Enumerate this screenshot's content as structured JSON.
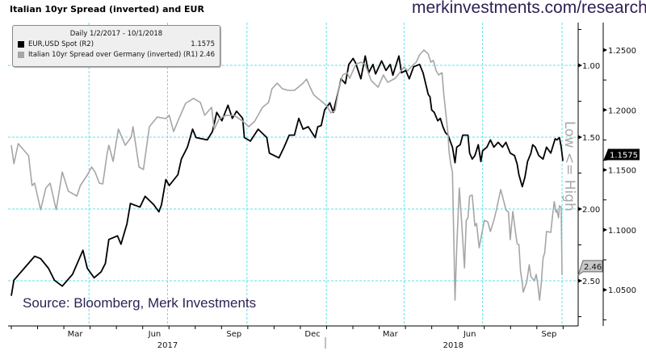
{
  "header": {
    "title": "Italian 10yr Spread (inverted) and EUR",
    "website": "merkinvestments.com/research"
  },
  "legend": {
    "header": "Daily 1/2/2017 - 10/1/2018",
    "items": [
      {
        "label": "EUR,USD Spot (R2)",
        "value": "1.1575",
        "color": "#000000"
      },
      {
        "label": "Italian 10yr Spread over Germany (inverted) (R1)",
        "value": "2.46",
        "color": "#a6a6a6"
      }
    ]
  },
  "source": "Source: Bloomberg, Merk Investments",
  "axis_note": "Low <= High",
  "chart_data": {
    "type": "line",
    "title": "Italian 10yr Spread (inverted) and EUR",
    "x_unit": "days since 2017-01-01",
    "x_range": [
      0,
      640
    ],
    "x_ticks": [
      {
        "label": "Mar",
        "day": 74
      },
      {
        "label": "Jun",
        "day": 166
      },
      {
        "label": "Sep",
        "day": 258
      },
      {
        "label": "Dec",
        "day": 349
      },
      {
        "label": "Mar",
        "day": 439
      },
      {
        "label": "Jun",
        "day": 531
      },
      {
        "label": "Sep",
        "day": 623
      }
    ],
    "x_gridlines_days": [
      90,
      181,
      273,
      365,
      455,
      546,
      638
    ],
    "years": [
      {
        "label": "2017",
        "day": 181
      },
      {
        "label": "2018",
        "day": 512
      }
    ],
    "grid": true,
    "legend_position": "top-left",
    "axes": {
      "R1": {
        "label": "Italian 10yr Spread (inverted)",
        "inverted": true,
        "ticks": [
          "1.00",
          "1.50",
          "2.00",
          "2.50"
        ],
        "range": [
          0.9,
          2.85
        ]
      },
      "R2": {
        "label": "EUR,USD Spot",
        "ticks": [
          "1.2500",
          "1.2000",
          "1.1500",
          "1.1000",
          "1.0500"
        ],
        "range": [
          1.03,
          1.275
        ]
      }
    },
    "last_values": {
      "eurusd": "1.1575",
      "spread": "2.46"
    },
    "series": [
      {
        "name": "EUR,USD Spot (R2)",
        "axis": "R2",
        "color": "#000000",
        "points": [
          [
            0,
            1.045
          ],
          [
            3,
            1.058
          ],
          [
            15,
            1.068
          ],
          [
            27,
            1.078
          ],
          [
            34,
            1.076
          ],
          [
            43,
            1.068
          ],
          [
            50,
            1.058
          ],
          [
            59,
            1.053
          ],
          [
            71,
            1.063
          ],
          [
            83,
            1.083
          ],
          [
            88,
            1.068
          ],
          [
            96,
            1.06
          ],
          [
            104,
            1.065
          ],
          [
            109,
            1.072
          ],
          [
            113,
            1.092
          ],
          [
            123,
            1.095
          ],
          [
            127,
            1.088
          ],
          [
            134,
            1.105
          ],
          [
            138,
            1.122
          ],
          [
            149,
            1.119
          ],
          [
            155,
            1.128
          ],
          [
            165,
            1.121
          ],
          [
            171,
            1.115
          ],
          [
            174,
            1.121
          ],
          [
            179,
            1.142
          ],
          [
            183,
            1.137
          ],
          [
            193,
            1.146
          ],
          [
            197,
            1.159
          ],
          [
            204,
            1.169
          ],
          [
            210,
            1.184
          ],
          [
            214,
            1.177
          ],
          [
            227,
            1.175
          ],
          [
            233,
            1.182
          ],
          [
            238,
            1.198
          ],
          [
            244,
            1.191
          ],
          [
            251,
            1.204
          ],
          [
            256,
            1.193
          ],
          [
            261,
            1.199
          ],
          [
            268,
            1.193
          ],
          [
            270,
            1.177
          ],
          [
            277,
            1.174
          ],
          [
            286,
            1.184
          ],
          [
            296,
            1.177
          ],
          [
            299,
            1.164
          ],
          [
            310,
            1.16
          ],
          [
            316,
            1.169
          ],
          [
            322,
            1.179
          ],
          [
            328,
            1.179
          ],
          [
            333,
            1.193
          ],
          [
            338,
            1.184
          ],
          [
            344,
            1.186
          ],
          [
            352,
            1.177
          ],
          [
            355,
            1.186
          ],
          [
            359,
            1.187
          ],
          [
            363,
            1.2
          ],
          [
            369,
            1.206
          ],
          [
            373,
            1.198
          ],
          [
            378,
            1.213
          ],
          [
            382,
            1.226
          ],
          [
            387,
            1.222
          ],
          [
            391,
            1.238
          ],
          [
            396,
            1.243
          ],
          [
            399,
            1.239
          ],
          [
            405,
            1.226
          ],
          [
            410,
            1.245
          ],
          [
            414,
            1.231
          ],
          [
            419,
            1.238
          ],
          [
            422,
            1.23
          ],
          [
            429,
            1.241
          ],
          [
            434,
            1.233
          ],
          [
            439,
            1.238
          ],
          [
            442,
            1.229
          ],
          [
            445,
            1.236
          ],
          [
            449,
            1.245
          ],
          [
            452,
            1.231
          ],
          [
            457,
            1.233
          ],
          [
            461,
            1.226
          ],
          [
            466,
            1.236
          ],
          [
            473,
            1.238
          ],
          [
            477,
            1.231
          ],
          [
            480,
            1.222
          ],
          [
            483,
            1.213
          ],
          [
            485,
            1.211
          ],
          [
            487,
            1.2
          ],
          [
            490,
            1.198
          ],
          [
            494,
            1.191
          ],
          [
            497,
            1.193
          ],
          [
            500,
            1.186
          ],
          [
            503,
            1.181
          ],
          [
            506,
            1.179
          ],
          [
            509,
            1.173
          ],
          [
            511,
            1.169
          ],
          [
            514,
            1.156
          ],
          [
            516,
            1.169
          ],
          [
            520,
            1.171
          ],
          [
            523,
            1.179
          ],
          [
            527,
            1.179
          ],
          [
            529,
            1.179
          ],
          [
            531,
            1.164
          ],
          [
            534,
            1.159
          ],
          [
            537,
            1.162
          ],
          [
            541,
            1.171
          ],
          [
            544,
            1.157
          ],
          [
            546,
            1.166
          ],
          [
            551,
            1.169
          ],
          [
            555,
            1.175
          ],
          [
            559,
            1.169
          ],
          [
            564,
            1.173
          ],
          [
            569,
            1.169
          ],
          [
            573,
            1.173
          ],
          [
            578,
            1.164
          ],
          [
            583,
            1.162
          ],
          [
            586,
            1.155
          ],
          [
            588,
            1.146
          ],
          [
            592,
            1.136
          ],
          [
            595,
            1.144
          ],
          [
            598,
            1.157
          ],
          [
            602,
            1.164
          ],
          [
            604,
            1.171
          ],
          [
            607,
            1.169
          ],
          [
            611,
            1.162
          ],
          [
            616,
            1.159
          ],
          [
            620,
            1.169
          ],
          [
            625,
            1.164
          ],
          [
            630,
            1.176
          ],
          [
            632,
            1.175
          ],
          [
            635,
            1.177
          ],
          [
            637,
            1.169
          ],
          [
            639,
            1.1575
          ]
        ]
      },
      {
        "name": "Italian 10yr Spread over Germany (inverted) (R1)",
        "axis": "R1",
        "color": "#a6a6a6",
        "points": [
          [
            0,
            1.556
          ],
          [
            3,
            1.685
          ],
          [
            8,
            1.545
          ],
          [
            20,
            1.629
          ],
          [
            24,
            1.837
          ],
          [
            27,
            1.82
          ],
          [
            34,
            2.006
          ],
          [
            40,
            1.854
          ],
          [
            45,
            1.82
          ],
          [
            52,
            2.006
          ],
          [
            59,
            1.742
          ],
          [
            66,
            1.876
          ],
          [
            76,
            1.91
          ],
          [
            80,
            1.837
          ],
          [
            88,
            1.764
          ],
          [
            93,
            1.708
          ],
          [
            97,
            1.742
          ],
          [
            102,
            1.82
          ],
          [
            106,
            1.826
          ],
          [
            111,
            1.612
          ],
          [
            113,
            1.556
          ],
          [
            118,
            1.669
          ],
          [
            124,
            1.444
          ],
          [
            132,
            1.556
          ],
          [
            139,
            1.5
          ],
          [
            141,
            1.427
          ],
          [
            148,
            1.708
          ],
          [
            153,
            1.725
          ],
          [
            160,
            1.427
          ],
          [
            169,
            1.36
          ],
          [
            179,
            1.371
          ],
          [
            183,
            1.348
          ],
          [
            188,
            1.461
          ],
          [
            193,
            1.388
          ],
          [
            202,
            1.264
          ],
          [
            211,
            1.23
          ],
          [
            219,
            1.258
          ],
          [
            224,
            1.348
          ],
          [
            232,
            1.292
          ],
          [
            235,
            1.444
          ],
          [
            241,
            1.371
          ],
          [
            249,
            1.348
          ],
          [
            258,
            1.348
          ],
          [
            268,
            1.388
          ],
          [
            275,
            1.427
          ],
          [
            282,
            1.388
          ],
          [
            291,
            1.292
          ],
          [
            298,
            1.258
          ],
          [
            302,
            1.163
          ],
          [
            308,
            1.124
          ],
          [
            314,
            1.163
          ],
          [
            321,
            1.174
          ],
          [
            328,
            1.174
          ],
          [
            338,
            1.124
          ],
          [
            342,
            1.096
          ],
          [
            347,
            1.163
          ],
          [
            350,
            1.202
          ],
          [
            355,
            1.23
          ],
          [
            361,
            1.258
          ],
          [
            366,
            1.287
          ],
          [
            370,
            1.331
          ],
          [
            375,
            1.315
          ],
          [
            380,
            1.146
          ],
          [
            384,
            1.067
          ],
          [
            389,
            1.051
          ],
          [
            392,
            1.09
          ],
          [
            399,
            0.994
          ],
          [
            405,
            0.978
          ],
          [
            410,
            0.994
          ],
          [
            417,
            1.107
          ],
          [
            425,
            1.152
          ],
          [
            431,
            1.067
          ],
          [
            436,
            1.118
          ],
          [
            445,
            1.09
          ],
          [
            455,
            1.011
          ],
          [
            459,
            1.039
          ],
          [
            464,
            1.006
          ],
          [
            469,
            0.978
          ],
          [
            473,
            0.927
          ],
          [
            478,
            0.893
          ],
          [
            483,
            0.921
          ],
          [
            486,
            0.978
          ],
          [
            489,
            0.966
          ],
          [
            492,
            1.034
          ],
          [
            495,
            1.067
          ],
          [
            499,
            1.051
          ],
          [
            501,
            1.202
          ],
          [
            504,
            1.371
          ],
          [
            506,
            1.483
          ],
          [
            507,
            1.596
          ],
          [
            509,
            1.685
          ],
          [
            511,
            1.742
          ],
          [
            514,
            2.635
          ],
          [
            516,
            2.27
          ],
          [
            519,
            1.854
          ],
          [
            522,
            2.118
          ],
          [
            525,
            2.41
          ],
          [
            527,
            2.079
          ],
          [
            529,
            2.062
          ],
          [
            531,
            1.91
          ],
          [
            534,
            1.904
          ],
          [
            537,
            2.118
          ],
          [
            539,
            2.101
          ],
          [
            542,
            2.27
          ],
          [
            545,
            2.174
          ],
          [
            548,
            2.079
          ],
          [
            552,
            2.09
          ],
          [
            555,
            2.157
          ],
          [
            559,
            2.079
          ],
          [
            562,
            2.006
          ],
          [
            564,
            1.949
          ],
          [
            567,
            1.865
          ],
          [
            570,
            1.933
          ],
          [
            573,
            2.006
          ],
          [
            576,
            2.022
          ],
          [
            578,
            2.213
          ],
          [
            581,
            2.017
          ],
          [
            584,
            2.157
          ],
          [
            586,
            2.242
          ],
          [
            588,
            2.247
          ],
          [
            590,
            2.438
          ],
          [
            592,
            2.511
          ],
          [
            593,
            2.579
          ],
          [
            597,
            2.511
          ],
          [
            600,
            2.388
          ],
          [
            602,
            2.472
          ],
          [
            606,
            2.5
          ],
          [
            608,
            2.455
          ],
          [
            610,
            2.528
          ],
          [
            612,
            2.635
          ],
          [
            614,
            2.511
          ],
          [
            616,
            2.343
          ],
          [
            618,
            2.303
          ],
          [
            620,
            2.157
          ],
          [
            625,
            2.163
          ],
          [
            627,
            2.045
          ],
          [
            629,
            1.949
          ],
          [
            631,
            2.022
          ],
          [
            632,
            2.006
          ],
          [
            634,
            2.062
          ],
          [
            635,
            1.978
          ],
          [
            637,
            1.989
          ],
          [
            638,
            2.46
          ]
        ]
      }
    ]
  }
}
